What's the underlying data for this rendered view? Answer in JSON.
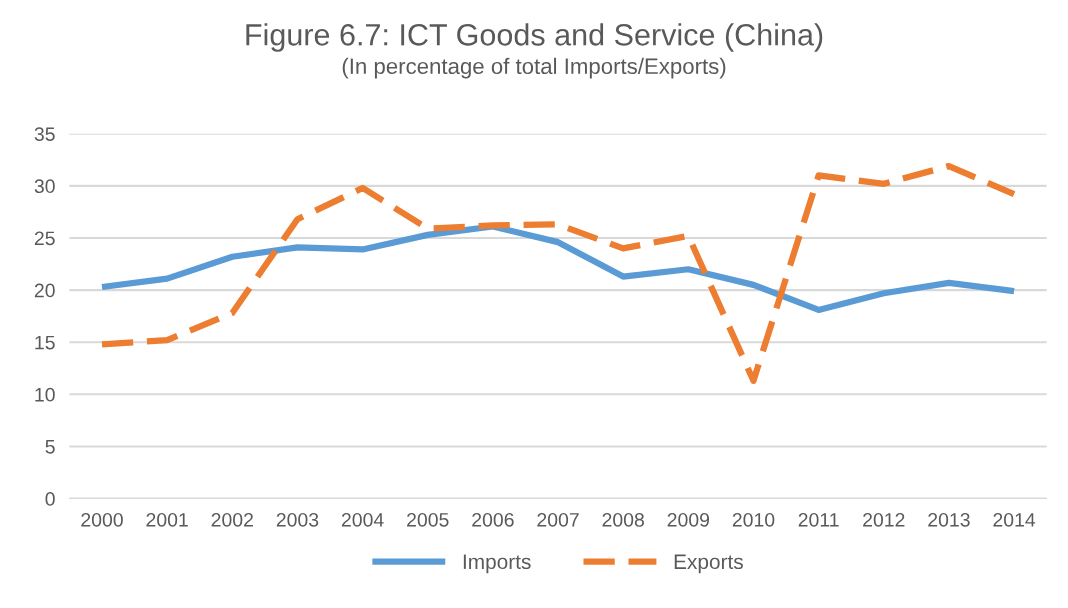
{
  "chart_data": {
    "type": "line",
    "title": "Figure 6.7: ICT Goods and Service (China)",
    "subtitle": "(In percentage of total Imports/Exports)",
    "categories": [
      "2000",
      "2001",
      "2002",
      "2003",
      "2004",
      "2005",
      "2006",
      "2007",
      "2008",
      "2009",
      "2010",
      "2011",
      "2012",
      "2013",
      "2014"
    ],
    "series": [
      {
        "name": "Imports",
        "color": "#5b9bd5",
        "line_style": "solid",
        "values": [
          20.3,
          21.1,
          23.2,
          24.1,
          23.9,
          25.3,
          26.1,
          24.6,
          21.3,
          22.0,
          20.5,
          18.1,
          19.7,
          20.7,
          19.9
        ]
      },
      {
        "name": "Exports",
        "color": "#ed7d31",
        "line_style": "dashed",
        "values": [
          14.8,
          15.2,
          17.8,
          26.8,
          29.8,
          25.9,
          26.2,
          26.3,
          24.0,
          25.2,
          11.3,
          31.0,
          30.2,
          31.9,
          29.2
        ]
      }
    ],
    "ylim": [
      0,
      35
    ],
    "yticks": [
      0,
      5,
      10,
      15,
      20,
      25,
      30,
      35
    ],
    "grid": "y",
    "legend": "bottom",
    "marker": "none"
  }
}
